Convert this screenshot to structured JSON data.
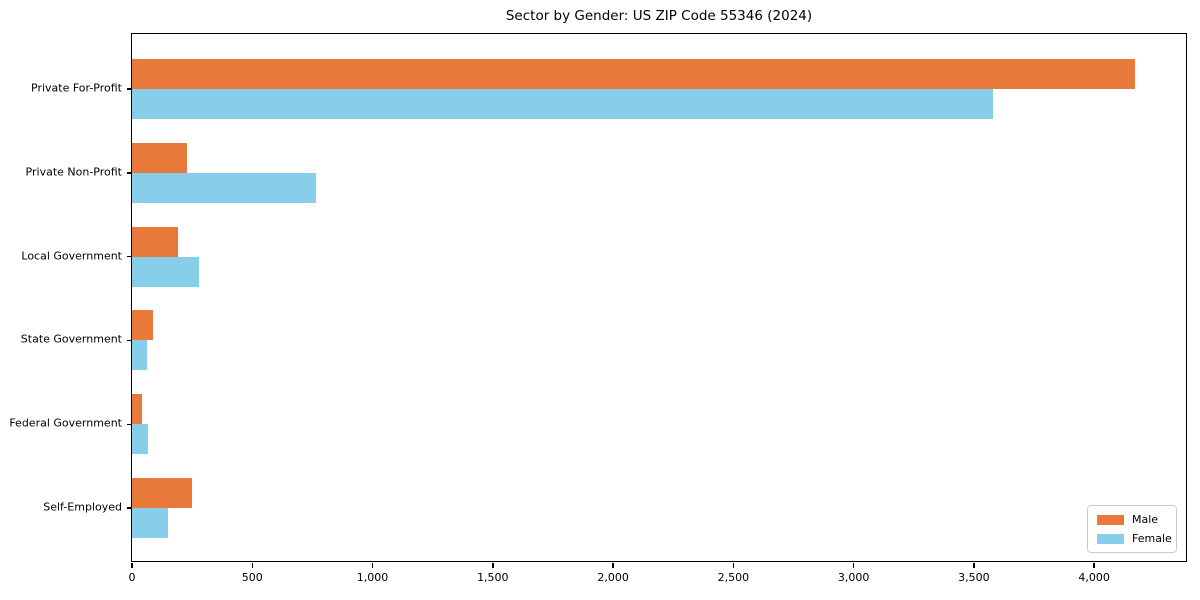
{
  "figure": {
    "background": "#ffffff",
    "axis_color": "#000000"
  },
  "chart_data": {
    "type": "bar",
    "orientation": "horizontal",
    "title": "Sector by Gender: US ZIP Code 55346 (2024)",
    "xlabel": "",
    "ylabel": "",
    "categories": [
      "Private For-Profit",
      "Private Non-Profit",
      "Local Government",
      "State Government",
      "Federal Government",
      "Self-Employed"
    ],
    "series": [
      {
        "name": "Male",
        "color": "#e8793a",
        "values": [
          4170,
          227,
          192,
          86,
          43,
          249
        ]
      },
      {
        "name": "Female",
        "color": "#87ceeb",
        "values": [
          3580,
          764,
          279,
          61,
          65,
          151
        ]
      }
    ],
    "xlim": [
      0,
      4390
    ],
    "xticks": [
      0,
      500,
      1000,
      1500,
      2000,
      2500,
      3000,
      3500,
      4000
    ],
    "xtick_labels": [
      "0",
      "500",
      "1,000",
      "1,500",
      "2,000",
      "2,500",
      "3,000",
      "3,500",
      "4,000"
    ],
    "grid": false,
    "legend": {
      "position": "lower right",
      "entries": [
        "Male",
        "Female"
      ]
    }
  }
}
